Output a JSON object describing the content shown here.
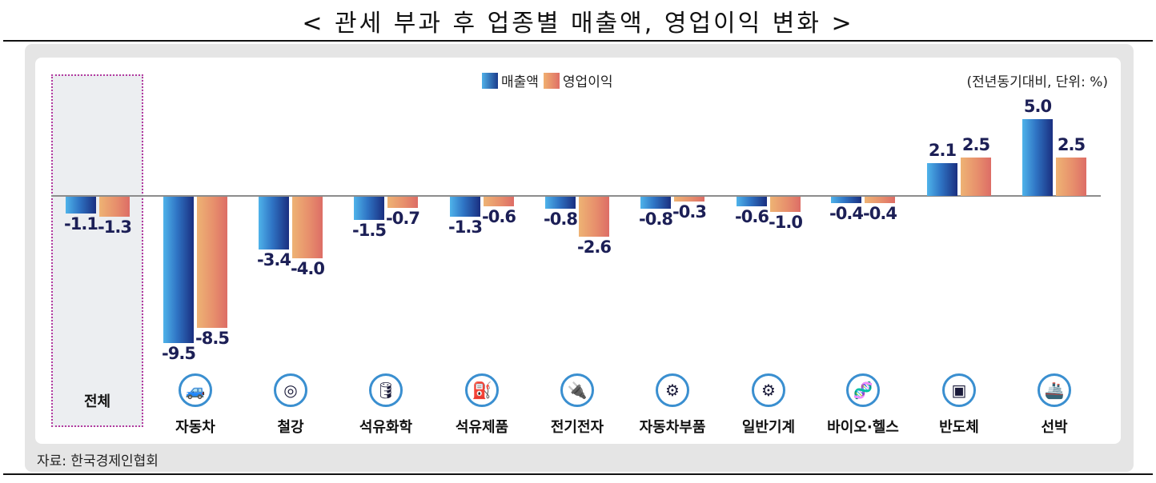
{
  "title": "< 관세 부과 후 업종별 매출액, 영업이익 변화 >",
  "legend": {
    "sales": "매출액",
    "profit": "영업이익"
  },
  "unit_note": "(전년동기대비, 단위: %)",
  "source": "자료: 한국경제인협회",
  "colors": {
    "sales_light": "#4fb3ea",
    "sales_dark": "#1a2f80",
    "profit_light": "#eeb374",
    "profit_dark": "#dd6d66",
    "highlight_border": "#b33aa0",
    "label": "#1c1f56"
  },
  "chart_data": {
    "type": "bar",
    "title": "< 관세 부과 후 업종별 매출액, 영업이익 변화 >",
    "xlabel": "",
    "ylabel": "전년동기대비, 단위: %",
    "categories": [
      "전체",
      "자동차",
      "철강",
      "석유화학",
      "석유제품",
      "전기전자",
      "자동차부품",
      "일반기계",
      "바이오·헬스",
      "반도체",
      "선박"
    ],
    "series": [
      {
        "name": "매출액",
        "values": [
          -1.1,
          -9.5,
          -3.4,
          -1.5,
          -1.3,
          -0.8,
          -0.8,
          -0.6,
          -0.4,
          2.1,
          5.0
        ]
      },
      {
        "name": "영업이익",
        "values": [
          -1.3,
          -8.5,
          -4.0,
          -0.7,
          -0.6,
          -2.6,
          -0.3,
          -1.0,
          -0.4,
          2.5,
          2.5
        ]
      }
    ],
    "value_labels": {
      "sales": [
        "-1.1",
        "-9.5",
        "-3.4",
        "-1.5",
        "-1.3",
        "-0.8",
        "-0.8",
        "-0.6",
        "-0.4",
        "2.1",
        "5.0"
      ],
      "profit": [
        "-1.3",
        "-8.5",
        "-4.0",
        "-0.7",
        "-0.6",
        "-2.6",
        "-0.3",
        "-1.0",
        "-0.4",
        "2.5",
        "2.5"
      ]
    },
    "ylim": [
      -10,
      5.5
    ],
    "grid": false,
    "legend_position": "top-center",
    "highlighted_category": "전체",
    "source": "자료: 한국경제인협회"
  },
  "categories": [
    {
      "label": "전체",
      "icon": "none"
    },
    {
      "label": "자동차",
      "icon": "car-icon",
      "glyph": "🚙"
    },
    {
      "label": "철강",
      "icon": "steel-coil-icon",
      "glyph": "◎"
    },
    {
      "label": "석유화학",
      "icon": "tank-car-icon",
      "glyph": "🛢"
    },
    {
      "label": "석유제품",
      "icon": "oil-can-icon",
      "glyph": "⛽"
    },
    {
      "label": "전기전자",
      "icon": "plug-icon",
      "glyph": "🔌"
    },
    {
      "label": "자동차부품",
      "icon": "tire-icon",
      "glyph": "⚙"
    },
    {
      "label": "일반기계",
      "icon": "gears-icon",
      "glyph": "⚙"
    },
    {
      "label": "바이오·헬스",
      "icon": "dna-icon",
      "glyph": "🧬"
    },
    {
      "label": "반도체",
      "icon": "chip-icon",
      "glyph": "▣"
    },
    {
      "label": "선박",
      "icon": "ship-icon",
      "glyph": "🚢"
    }
  ]
}
